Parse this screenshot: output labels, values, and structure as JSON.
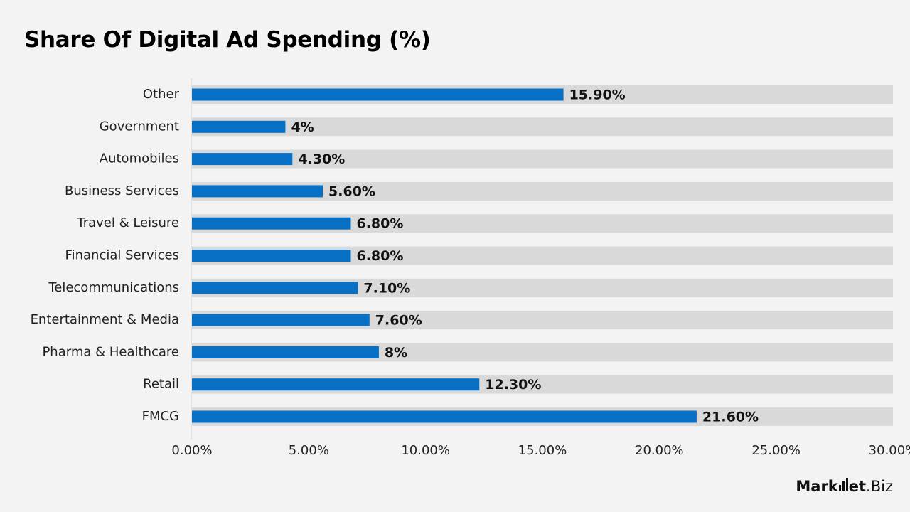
{
  "chart_data": {
    "type": "bar",
    "orientation": "horizontal",
    "title": "Share Of Digital Ad Spending (%)",
    "categories": [
      "Other",
      "Government",
      "Automobiles",
      "Business Services",
      "Travel & Leisure",
      "Financial Services",
      "Telecommunications",
      "Entertainment & Media",
      "Pharma & Healthcare",
      "Retail",
      "FMCG"
    ],
    "values": [
      15.9,
      4.0,
      4.3,
      5.6,
      6.8,
      6.8,
      7.1,
      7.6,
      8.0,
      12.3,
      21.6
    ],
    "data_labels": [
      "15.90%",
      "4%",
      "4.30%",
      "5.60%",
      "6.80%",
      "6.80%",
      "7.10%",
      "7.60%",
      "8%",
      "12.30%",
      "21.60%"
    ],
    "xlim": [
      0,
      30
    ],
    "x_ticks": [
      "0.00%",
      "5.00%",
      "10.00%",
      "15.00%",
      "20.00%",
      "25.00%",
      "30.00%"
    ],
    "bar_color": "#0870c4",
    "track_color": "#d9d9d9",
    "grid": false,
    "legend": false
  },
  "brand": {
    "name_bold": "Mark",
    "name_mid": "et",
    "name_suffix": ".Biz"
  }
}
